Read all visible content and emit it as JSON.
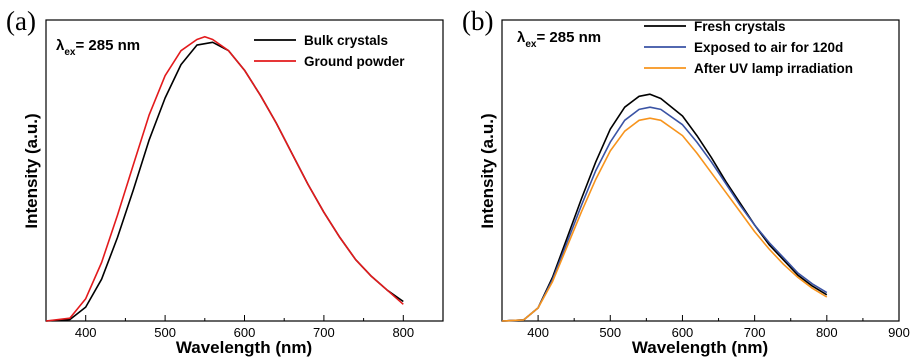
{
  "chart_data": [
    {
      "type": "line",
      "panel": "(a)",
      "annotation": {
        "lambda": "λ",
        "sub": "ex",
        "text": "= 285 nm"
      },
      "xlabel": "Wavelength (nm)",
      "ylabel": "Intensity (a.u.)",
      "xlim": [
        350,
        850
      ],
      "ylim": [
        0,
        1.08
      ],
      "xticks": [
        400,
        500,
        600,
        700,
        800
      ],
      "grid": false,
      "legend_position": "top-right",
      "series": [
        {
          "name": "Bulk crystals",
          "color": "#000000",
          "x": [
            350,
            380,
            400,
            420,
            440,
            460,
            480,
            500,
            520,
            540,
            560,
            580,
            600,
            620,
            640,
            660,
            680,
            700,
            720,
            740,
            760,
            780,
            800
          ],
          "y": [
            0,
            0.005,
            0.05,
            0.15,
            0.3,
            0.47,
            0.65,
            0.8,
            0.92,
            0.99,
            1.0,
            0.97,
            0.9,
            0.81,
            0.71,
            0.6,
            0.49,
            0.39,
            0.3,
            0.22,
            0.16,
            0.11,
            0.07
          ]
        },
        {
          "name": "Ground powder",
          "color": "#e31a1c",
          "x": [
            350,
            380,
            400,
            420,
            440,
            460,
            480,
            500,
            520,
            540,
            550,
            560,
            580,
            600,
            620,
            640,
            660,
            680,
            700,
            720,
            740,
            760,
            780,
            800
          ],
          "y": [
            0,
            0.01,
            0.08,
            0.21,
            0.38,
            0.56,
            0.74,
            0.88,
            0.97,
            1.01,
            1.02,
            1.01,
            0.97,
            0.9,
            0.81,
            0.71,
            0.6,
            0.49,
            0.39,
            0.3,
            0.22,
            0.16,
            0.11,
            0.06
          ]
        }
      ]
    },
    {
      "type": "line",
      "panel": "(b)",
      "annotation": {
        "lambda": "λ",
        "sub": "ex",
        "text": "= 285 nm"
      },
      "xlabel": "Wavelength (nm)",
      "ylabel": "Intensity (a.u.)",
      "xlim": [
        350,
        900
      ],
      "ylim": [
        0,
        1.38
      ],
      "xticks": [
        400,
        500,
        600,
        700,
        800,
        900
      ],
      "grid": false,
      "legend_position": "top-right",
      "series": [
        {
          "name": "Fresh crystals",
          "color": "#000000",
          "x": [
            350,
            380,
            400,
            420,
            440,
            460,
            480,
            500,
            520,
            540,
            555,
            570,
            600,
            620,
            640,
            660,
            680,
            700,
            720,
            740,
            760,
            780,
            800
          ],
          "y": [
            0,
            0.005,
            0.06,
            0.2,
            0.38,
            0.56,
            0.73,
            0.88,
            0.98,
            1.03,
            1.04,
            1.02,
            0.94,
            0.85,
            0.75,
            0.64,
            0.54,
            0.44,
            0.35,
            0.28,
            0.21,
            0.16,
            0.12
          ]
        },
        {
          "name": "Exposed to air for 120d",
          "color": "#3a53a4",
          "x": [
            350,
            380,
            400,
            420,
            440,
            460,
            480,
            500,
            520,
            540,
            555,
            570,
            600,
            620,
            640,
            660,
            680,
            700,
            720,
            740,
            760,
            780,
            800
          ],
          "y": [
            0,
            0.005,
            0.06,
            0.19,
            0.36,
            0.53,
            0.69,
            0.82,
            0.92,
            0.97,
            0.98,
            0.97,
            0.9,
            0.82,
            0.73,
            0.63,
            0.53,
            0.44,
            0.36,
            0.29,
            0.22,
            0.17,
            0.13
          ]
        },
        {
          "name": "After UV lamp irradiation",
          "color": "#f7941d",
          "x": [
            350,
            380,
            400,
            420,
            440,
            460,
            480,
            500,
            520,
            540,
            555,
            570,
            600,
            620,
            640,
            660,
            680,
            700,
            720,
            740,
            760,
            780,
            800
          ],
          "y": [
            0,
            0.005,
            0.06,
            0.18,
            0.34,
            0.5,
            0.65,
            0.78,
            0.87,
            0.92,
            0.93,
            0.92,
            0.85,
            0.77,
            0.68,
            0.59,
            0.5,
            0.41,
            0.33,
            0.26,
            0.2,
            0.15,
            0.11
          ]
        }
      ]
    }
  ]
}
